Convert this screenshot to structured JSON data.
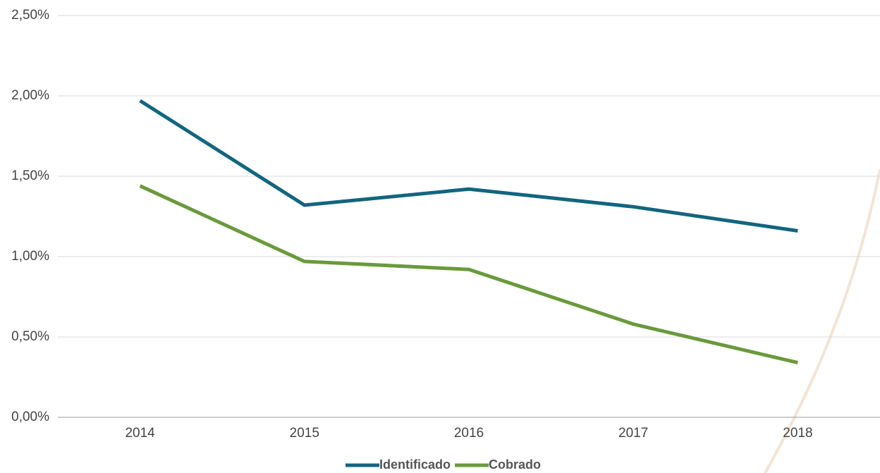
{
  "chart_data": {
    "type": "line",
    "categories": [
      "2014",
      "2015",
      "2016",
      "2017",
      "2018"
    ],
    "series": [
      {
        "name": "Identificado",
        "color": "#12657f",
        "values": [
          1.97,
          1.32,
          1.42,
          1.31,
          1.16
        ]
      },
      {
        "name": "Cobrado",
        "color": "#6a9a3c",
        "values": [
          1.44,
          0.97,
          0.92,
          0.58,
          0.34
        ]
      }
    ],
    "ylim": [
      0,
      2.5
    ],
    "yticks": [
      {
        "value": 0,
        "label": "0,00%"
      },
      {
        "value": 0.5,
        "label": "0,50%"
      },
      {
        "value": 1,
        "label": "1,00%"
      },
      {
        "value": 1.5,
        "label": "1,50%"
      },
      {
        "value": 2,
        "label": "2,00%"
      },
      {
        "value": 2.5,
        "label": "2,50%"
      }
    ],
    "grid": true,
    "legend": "bottom"
  }
}
